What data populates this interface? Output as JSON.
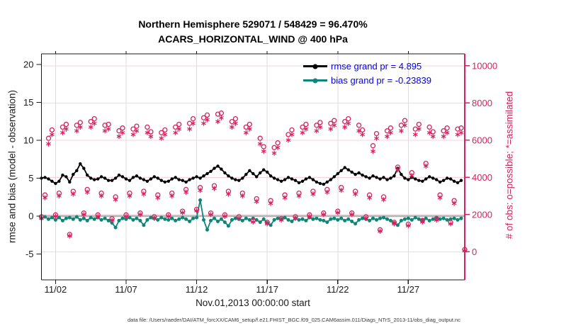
{
  "header": {
    "title_line1": "Northern Hemisphere 529071 / 548429 = 96.470%",
    "title_line2": "ACARS_HORIZONTAL_WIND @ 400 hPa"
  },
  "legend": {
    "text_color": "#0000FF",
    "items": [
      {
        "label": "rmse grand pr = 4.895",
        "color": "#000000"
      },
      {
        "label": "bias grand pr = -0.23839",
        "color": "#0E8577"
      }
    ]
  },
  "axes": {
    "ylabel_left": "rmse and bias (model - observation)",
    "ylabel_right": "# of obs: o=possible; *=assimilated",
    "xlabel": "Nov.01,2013 00:00:00 start",
    "left_color": "#1a1a1a",
    "right_color": "#D6215E"
  },
  "footer": {
    "data_file_note": "data file: /Users/raeder/DAI/ATM_forcXX/CAM6_setup/f.e21.FHIST_BGC.f09_025.CAM6assim.011/Diags_NTrS_2013-11/obs_diag_output.nc"
  },
  "chart_data": {
    "type": "line+scatter",
    "title": "Northern Hemisphere 529071 / 548429 = 96.470%",
    "subtitle": "ACARS_HORIZONTAL_WIND @ 400 hPa",
    "xlabel": "Nov.01,2013 00:00:00 start",
    "ylabel_left": "rmse and bias (model - observation)",
    "ylabel_right": "# of obs: o=possible; *=assimilated",
    "x_unit": "day of November 2013, 6-hourly bins",
    "x_range_days": [
      1,
      31
    ],
    "x_tick_days": [
      2,
      7,
      12,
      17,
      22,
      27
    ],
    "x_tick_labels": [
      "11/02",
      "11/07",
      "11/12",
      "11/17",
      "11/22",
      "11/27"
    ],
    "ylim_left": [
      -8.4,
      21.4
    ],
    "yticks_left": [
      -5,
      0,
      5,
      10,
      15,
      20
    ],
    "ylim_right": [
      -1520,
      10700
    ],
    "yticks_right": [
      0,
      2000,
      4000,
      6000,
      8000,
      10000
    ],
    "grid": true,
    "legend_position": "top-center-right",
    "style": {
      "accent": "#D6215E",
      "hgrid": "#F7D3DE",
      "vgrid": "#DCDCDC",
      "zero_line": "#b3b3b3"
    },
    "series": [
      {
        "name": "rmse",
        "axis": "left",
        "color": "#000000",
        "marker": "dot",
        "line": true,
        "grand_value": 4.895,
        "x_start": 1.0,
        "x_step": 0.25,
        "values": [
          5.0,
          5.1,
          4.9,
          4.6,
          4.3,
          4.6,
          5.4,
          5.2,
          4.5,
          5.5,
          6.0,
          6.9,
          6.3,
          5.4,
          5.0,
          4.8,
          4.9,
          5.2,
          5.0,
          4.7,
          4.7,
          5.0,
          5.4,
          5.2,
          4.9,
          4.7,
          5.1,
          5.3,
          5.0,
          4.8,
          4.6,
          4.9,
          5.2,
          5.0,
          4.7,
          4.5,
          4.6,
          4.9,
          5.1,
          4.8,
          4.7,
          4.5,
          4.8,
          5.0,
          5.2,
          5.0,
          5.3,
          5.6,
          5.9,
          6.3,
          6.6,
          6.2,
          5.7,
          5.3,
          5.0,
          4.8,
          4.7,
          5.0,
          5.5,
          6.0,
          5.6,
          5.2,
          5.7,
          6.1,
          5.8,
          5.3,
          5.0,
          4.8,
          4.6,
          4.8,
          5.1,
          4.9,
          4.7,
          4.4,
          4.6,
          4.9,
          5.1,
          4.8,
          4.5,
          4.3,
          4.2,
          4.5,
          4.8,
          5.2,
          5.6,
          6.0,
          6.4,
          6.1,
          5.8,
          5.5,
          5.7,
          5.4,
          5.2,
          5.0,
          5.3,
          5.1,
          4.9,
          5.1,
          4.8,
          5.0,
          5.3,
          6.3,
          5.5,
          5.0,
          4.8,
          5.1,
          4.9,
          4.7,
          4.6,
          4.9,
          5.2,
          5.0,
          4.8,
          4.5,
          4.7,
          5.0,
          4.9,
          4.6,
          4.4,
          4.7
        ]
      },
      {
        "name": "bias",
        "axis": "left",
        "color": "#0E8577",
        "marker": "dot",
        "line": true,
        "grand_value": -0.23839,
        "x_start": 1.0,
        "x_step": 0.25,
        "values": [
          -0.3,
          -0.1,
          -0.4,
          -0.2,
          -0.5,
          -0.2,
          -0.6,
          -0.3,
          -0.2,
          -0.4,
          -0.1,
          -0.5,
          -0.3,
          -0.6,
          -0.2,
          -0.4,
          -0.2,
          -0.5,
          -0.3,
          -0.6,
          -0.9,
          -1.5,
          -0.6,
          -0.3,
          -0.4,
          -0.2,
          -0.5,
          -0.3,
          -0.6,
          -1.2,
          -0.5,
          -0.2,
          -0.3,
          -0.5,
          -0.2,
          -0.4,
          -0.5,
          -0.3,
          -0.6,
          -0.4,
          -0.2,
          -0.4,
          -0.7,
          -0.3,
          -0.2,
          2.1,
          -0.5,
          -1.8,
          -0.6,
          -0.3,
          -0.7,
          -0.4,
          -0.8,
          -1.3,
          -0.5,
          -0.3,
          -0.4,
          -0.6,
          -0.3,
          -0.5,
          -0.3,
          -0.5,
          -0.8,
          -0.4,
          -0.9,
          -1.2,
          -0.5,
          -0.3,
          -0.4,
          -0.2,
          -0.5,
          -0.7,
          -0.3,
          -0.5,
          -0.4,
          -0.6,
          -0.2,
          -0.4,
          -0.3,
          -0.5,
          -0.6,
          -0.8,
          -0.4,
          -0.3,
          -0.5,
          -0.3,
          -0.6,
          -0.4,
          -0.7,
          -1.0,
          -0.5,
          -0.3,
          -0.4,
          -0.6,
          -0.3,
          -0.5,
          -0.3,
          -0.2,
          -0.4,
          -0.6,
          -0.9,
          -1.2,
          -0.6,
          -0.4,
          -0.3,
          -0.5,
          -0.2,
          -0.4,
          -0.5,
          -0.3,
          -0.6,
          -0.4,
          -0.2,
          -0.4,
          -0.3,
          -0.5,
          -0.4,
          -0.3,
          -0.5,
          -0.3
        ]
      },
      {
        "name": "possible",
        "axis": "right",
        "color": "#D6215E",
        "marker": "circle",
        "line": false,
        "x_start": 1.0,
        "x_step": 0.25,
        "values": [
          1880,
          3050,
          6100,
          6550,
          1980,
          3150,
          6700,
          6850,
          930,
          3250,
          6800,
          6950,
          2080,
          3350,
          7000,
          7150,
          1980,
          3150,
          6800,
          6850,
          1780,
          2950,
          6500,
          6650,
          1980,
          3150,
          6600,
          6750,
          2080,
          3250,
          6700,
          6450,
          1880,
          3050,
          6400,
          6550,
          1980,
          3150,
          6700,
          6850,
          2180,
          3350,
          6900,
          7150,
          2280,
          3450,
          7200,
          7350,
          2080,
          3550,
          7400,
          7450,
          1980,
          3250,
          7000,
          7150,
          1880,
          3150,
          6700,
          6850,
          1680,
          2850,
          6100,
          5650,
          1580,
          2750,
          5600,
          5850,
          1780,
          3050,
          6300,
          6550,
          1880,
          3150,
          6700,
          6850,
          1980,
          3250,
          6800,
          6950,
          2080,
          3350,
          6900,
          7050,
          2180,
          3450,
          7000,
          7150,
          2080,
          3250,
          6800,
          6550,
          1880,
          3050,
          5700,
          6350,
          1180,
          2950,
          6500,
          6650,
          1580,
          4550,
          6800,
          7050,
          1480,
          4250,
          6600,
          6850,
          1680,
          4750,
          6700,
          6450,
          1780,
          3050,
          6500,
          6650,
          1580,
          2750,
          6600,
          6650,
          120
        ]
      },
      {
        "name": "assimilated",
        "axis": "right",
        "color": "#D6215E",
        "marker": "asterisk",
        "line": false,
        "x_start": 1.0,
        "x_step": 0.25,
        "values": [
          1800,
          2900,
          5800,
          6300,
          1900,
          3000,
          6400,
          6600,
          850,
          3100,
          6500,
          6700,
          2000,
          3200,
          6700,
          6900,
          1900,
          3000,
          6500,
          6600,
          1700,
          2800,
          6200,
          6400,
          1900,
          3000,
          6300,
          6500,
          2000,
          3100,
          6400,
          6200,
          1800,
          2900,
          6100,
          6300,
          1900,
          3000,
          6400,
          6600,
          2100,
          3200,
          6600,
          6900,
          2200,
          3300,
          6900,
          7100,
          2000,
          3400,
          7000,
          7200,
          1900,
          3100,
          6700,
          6900,
          1800,
          3000,
          6400,
          6600,
          1600,
          2700,
          5800,
          5400,
          1500,
          2600,
          5300,
          5600,
          1700,
          2900,
          6000,
          6300,
          1800,
          3000,
          6400,
          6600,
          1900,
          3100,
          6500,
          6700,
          2000,
          3200,
          6600,
          6800,
          2100,
          3300,
          6700,
          6900,
          2000,
          3100,
          6500,
          6300,
          1800,
          2900,
          5400,
          6100,
          1100,
          2800,
          6200,
          6400,
          1500,
          4400,
          6500,
          6800,
          1400,
          4100,
          6300,
          6600,
          1600,
          4600,
          6400,
          6200,
          1700,
          2900,
          6200,
          6400,
          1500,
          2600,
          6300,
          6400,
          50
        ]
      }
    ]
  }
}
